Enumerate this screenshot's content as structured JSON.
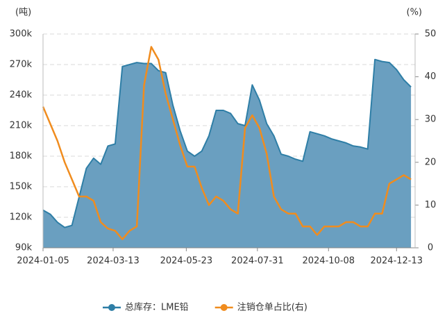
{
  "chart_data": {
    "type": "area_line",
    "y_unit": "(吨)",
    "y2_unit": "(%)",
    "x": [
      "2024-01-05",
      "2024-01-12",
      "2024-01-19",
      "2024-01-26",
      "2024-02-02",
      "2024-02-09",
      "2024-02-16",
      "2024-02-23",
      "2024-03-01",
      "2024-03-08",
      "2024-03-15",
      "2024-03-22",
      "2024-03-29",
      "2024-04-05",
      "2024-04-12",
      "2024-04-19",
      "2024-04-26",
      "2024-05-03",
      "2024-05-10",
      "2024-05-17",
      "2024-05-24",
      "2024-05-31",
      "2024-06-07",
      "2024-06-14",
      "2024-06-21",
      "2024-06-28",
      "2024-07-05",
      "2024-07-12",
      "2024-07-19",
      "2024-07-26",
      "2024-08-02",
      "2024-08-09",
      "2024-08-16",
      "2024-08-23",
      "2024-08-30",
      "2024-09-06",
      "2024-09-13",
      "2024-09-20",
      "2024-09-27",
      "2024-10-04",
      "2024-10-11",
      "2024-10-18",
      "2024-10-25",
      "2024-11-01",
      "2024-11-08",
      "2024-11-15",
      "2024-11-22",
      "2024-11-29",
      "2024-12-06",
      "2024-12-13",
      "2024-12-20",
      "2024-12-27"
    ],
    "series": [
      {
        "name": "总库存：LME铅",
        "color": "#2e7ea6",
        "fill": "#6a9fc0",
        "kind": "area",
        "values": [
          127000,
          123000,
          115000,
          110000,
          112000,
          140000,
          168000,
          178000,
          172000,
          190000,
          192000,
          268000,
          270000,
          272000,
          271000,
          271000,
          264000,
          262000,
          230000,
          205000,
          185000,
          180000,
          185000,
          200000,
          225000,
          225000,
          222000,
          212000,
          210000,
          250000,
          235000,
          212000,
          200000,
          182000,
          180000,
          177000,
          175000,
          204000,
          202000,
          200000,
          197000,
          195000,
          193000,
          190000,
          189000,
          187000,
          275000,
          273000,
          272000,
          265000,
          255000,
          248000
        ]
      },
      {
        "name": "注销仓单占比(右)",
        "color": "#f08c1e",
        "kind": "line",
        "axis": "y2",
        "values": [
          33,
          29,
          25,
          20,
          16,
          12,
          12,
          11,
          6,
          4.5,
          4,
          2,
          4,
          5,
          38,
          47,
          44,
          36,
          30,
          24,
          19,
          19,
          14,
          10,
          12,
          11,
          9,
          8,
          28,
          31,
          28,
          22,
          12,
          9,
          8,
          8,
          5,
          5,
          3,
          5,
          5,
          5,
          6,
          6,
          5,
          5,
          8,
          8,
          15,
          16,
          17,
          16
        ]
      }
    ],
    "xlim": [
      "2024-01-05",
      "2024-12-31"
    ],
    "xticks": [
      "2024-01-05",
      "2024-03-13",
      "2024-05-23",
      "2024-07-31",
      "2024-10-08",
      "2024-12-13"
    ],
    "ylim": [
      90000,
      300000
    ],
    "yticks": [
      {
        "value": 90000,
        "label": "90k"
      },
      {
        "value": 120000,
        "label": "120k"
      },
      {
        "value": 150000,
        "label": "150k"
      },
      {
        "value": 180000,
        "label": "180k"
      },
      {
        "value": 210000,
        "label": "210k"
      },
      {
        "value": 240000,
        "label": "240k"
      },
      {
        "value": 270000,
        "label": "270k"
      },
      {
        "value": 300000,
        "label": "300k"
      }
    ],
    "y2lim": [
      0,
      50
    ],
    "y2ticks": [
      0,
      10,
      20,
      30,
      40,
      50
    ],
    "grid": true,
    "legend": "bottom"
  }
}
